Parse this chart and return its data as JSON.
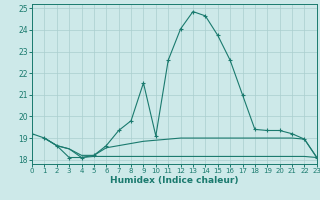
{
  "xlabel": "Humidex (Indice chaleur)",
  "xlim": [
    0,
    23
  ],
  "ylim": [
    17.8,
    25.2
  ],
  "yticks": [
    18,
    19,
    20,
    21,
    22,
    23,
    24,
    25
  ],
  "xticks": [
    0,
    1,
    2,
    3,
    4,
    5,
    6,
    7,
    8,
    9,
    10,
    11,
    12,
    13,
    14,
    15,
    16,
    17,
    18,
    19,
    20,
    21,
    22,
    23
  ],
  "bg_color": "#cde9e9",
  "line_color": "#1a7a6e",
  "grid_color": "#aacece",
  "curve_main_x": [
    0,
    1,
    2,
    3,
    4,
    5,
    6,
    7,
    8,
    9,
    10,
    11,
    12,
    13,
    14,
    15,
    16,
    17,
    18,
    19,
    20,
    21,
    22,
    23
  ],
  "curve_main_y": [
    19.2,
    19.0,
    18.65,
    18.1,
    18.1,
    18.2,
    18.65,
    19.35,
    19.8,
    21.55,
    19.1,
    22.6,
    24.05,
    24.85,
    24.65,
    23.75,
    22.6,
    21.0,
    19.4,
    19.35,
    19.35,
    19.2,
    18.95,
    18.1
  ],
  "curve_mid_x": [
    1,
    2,
    3,
    4,
    5,
    6,
    7,
    8,
    9,
    10,
    11,
    12,
    13,
    14,
    15,
    16,
    17,
    18,
    19,
    20,
    21,
    22,
    23
  ],
  "curve_mid_y": [
    19.0,
    18.65,
    18.5,
    18.2,
    18.2,
    18.55,
    18.65,
    18.75,
    18.85,
    18.9,
    18.95,
    19.0,
    19.0,
    19.0,
    19.0,
    19.0,
    19.0,
    19.0,
    19.0,
    19.0,
    19.0,
    18.95,
    18.1
  ],
  "curve_low_x": [
    1,
    2,
    3,
    4,
    5,
    6,
    7,
    8,
    9,
    10,
    11,
    12,
    13,
    14,
    15,
    16,
    17,
    18,
    19,
    20,
    21,
    22,
    23
  ],
  "curve_low_y": [
    19.0,
    18.65,
    18.5,
    18.1,
    18.15,
    18.15,
    18.15,
    18.15,
    18.15,
    18.15,
    18.15,
    18.15,
    18.15,
    18.15,
    18.15,
    18.15,
    18.15,
    18.15,
    18.15,
    18.15,
    18.15,
    18.15,
    18.1
  ]
}
